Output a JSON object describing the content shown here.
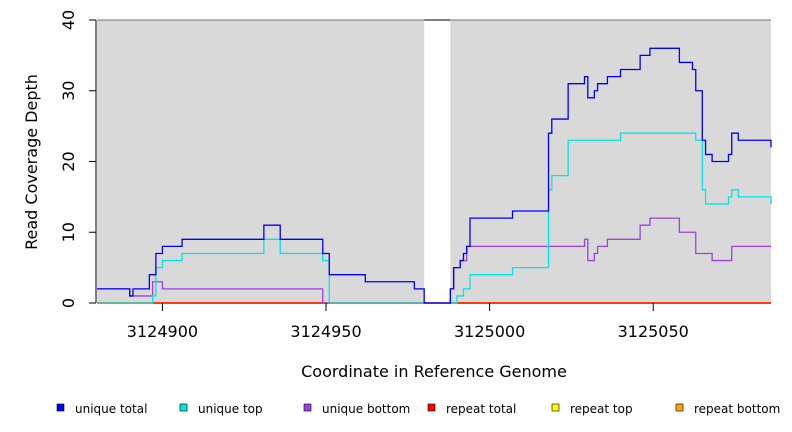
{
  "chart_data": {
    "type": "line",
    "step": true,
    "xlabel": "Coordinate in Reference Genome",
    "ylabel": "Read Coverage Depth",
    "xlim": [
      3124880,
      3125086
    ],
    "ylim": [
      0,
      40
    ],
    "x_ticks": [
      3124900,
      3124950,
      3125000,
      3125050
    ],
    "y_ticks": [
      0,
      10,
      20,
      30,
      40
    ],
    "background_color": "#d9d9d9",
    "gap": [
      3124980,
      3124988
    ],
    "legend_position": "bottom",
    "series": [
      {
        "name": "unique total",
        "color": "#0000ff",
        "points": [
          [
            3124880,
            2
          ],
          [
            3124890,
            1
          ],
          [
            3124891,
            2
          ],
          [
            3124896,
            4
          ],
          [
            3124898,
            7
          ],
          [
            3124900,
            8
          ],
          [
            3124906,
            9
          ],
          [
            3124931,
            11
          ],
          [
            3124936,
            9
          ],
          [
            3124949,
            7
          ],
          [
            3124951,
            4
          ],
          [
            3124962,
            3
          ],
          [
            3124977,
            2
          ],
          [
            3124980,
            0
          ],
          [
            3124988,
            2
          ],
          [
            3124989,
            5
          ],
          [
            3124991,
            6
          ],
          [
            3124992,
            7
          ],
          [
            3124993,
            8
          ],
          [
            3124994,
            12
          ],
          [
            3125007,
            13
          ],
          [
            3125018,
            24
          ],
          [
            3125019,
            26
          ],
          [
            3125024,
            31
          ],
          [
            3125029,
            32
          ],
          [
            3125030,
            29
          ],
          [
            3125032,
            30
          ],
          [
            3125033,
            31
          ],
          [
            3125036,
            32
          ],
          [
            3125040,
            33
          ],
          [
            3125046,
            35
          ],
          [
            3125049,
            36
          ],
          [
            3125058,
            34
          ],
          [
            3125062,
            33
          ],
          [
            3125063,
            30
          ],
          [
            3125065,
            23
          ],
          [
            3125066,
            21
          ],
          [
            3125068,
            20
          ],
          [
            3125073,
            21
          ],
          [
            3125074,
            24
          ],
          [
            3125076,
            23
          ],
          [
            3125086,
            22
          ]
        ]
      },
      {
        "name": "unique top",
        "color": "#00e5e5",
        "points": [
          [
            3124880,
            0
          ],
          [
            3124897,
            1
          ],
          [
            3124898,
            5
          ],
          [
            3124900,
            6
          ],
          [
            3124906,
            7
          ],
          [
            3124931,
            9
          ],
          [
            3124936,
            7
          ],
          [
            3124949,
            6
          ],
          [
            3124951,
            0
          ],
          [
            3124980,
            0
          ],
          [
            3124988,
            0
          ],
          [
            3124990,
            1
          ],
          [
            3124992,
            2
          ],
          [
            3124994,
            4
          ],
          [
            3125007,
            5
          ],
          [
            3125018,
            16
          ],
          [
            3125019,
            18
          ],
          [
            3125024,
            23
          ],
          [
            3125040,
            24
          ],
          [
            3125063,
            23
          ],
          [
            3125065,
            16
          ],
          [
            3125066,
            14
          ],
          [
            3125073,
            15
          ],
          [
            3125074,
            16
          ],
          [
            3125076,
            15
          ],
          [
            3125086,
            14
          ]
        ]
      },
      {
        "name": "unique bottom",
        "color": "#a040e0",
        "points": [
          [
            3124880,
            2
          ],
          [
            3124890,
            1
          ],
          [
            3124897,
            3
          ],
          [
            3124900,
            2
          ],
          [
            3124949,
            0
          ],
          [
            3124980,
            0
          ],
          [
            3124988,
            2
          ],
          [
            3124989,
            5
          ],
          [
            3124991,
            6
          ],
          [
            3124993,
            8
          ],
          [
            3125029,
            9
          ],
          [
            3125030,
            6
          ],
          [
            3125032,
            7
          ],
          [
            3125033,
            8
          ],
          [
            3125036,
            9
          ],
          [
            3125046,
            11
          ],
          [
            3125049,
            12
          ],
          [
            3125058,
            10
          ],
          [
            3125063,
            7
          ],
          [
            3125068,
            6
          ],
          [
            3125074,
            8
          ],
          [
            3125086,
            8
          ]
        ]
      },
      {
        "name": "repeat total",
        "color": "#ff0000",
        "points": [
          [
            3124880,
            0
          ],
          [
            3125086,
            0
          ]
        ]
      },
      {
        "name": "repeat top",
        "color": "#ffff00",
        "points": [
          [
            3124880,
            0
          ],
          [
            3125086,
            0
          ]
        ]
      },
      {
        "name": "repeat bottom",
        "color": "#ffa500",
        "points": [
          [
            3124880,
            0
          ],
          [
            3125086,
            0
          ]
        ]
      }
    ]
  }
}
